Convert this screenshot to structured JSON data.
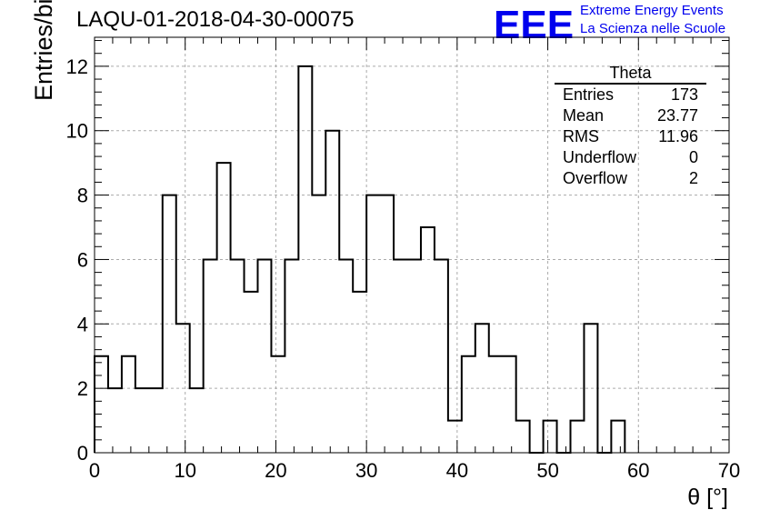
{
  "title": "LAQU-01-2018-04-30-00075",
  "logo": {
    "mark": "EEE",
    "line1": "Extreme Energy Events",
    "line2": "La Scienza nelle Scuole",
    "color": "#0000ee"
  },
  "stats": {
    "title": "Theta",
    "rows": [
      {
        "label": "Entries",
        "value": "173"
      },
      {
        "label": "Mean",
        "value": "23.77"
      },
      {
        "label": "RMS",
        "value": "11.96"
      },
      {
        "label": "Underflow",
        "value": "0"
      },
      {
        "label": "Overflow",
        "value": "2"
      }
    ]
  },
  "chart_data": {
    "type": "histogram",
    "title": "LAQU-01-2018-04-30-00075",
    "xlabel": "θ [°]",
    "ylabel": "Entries/bin",
    "xlim": [
      0,
      70
    ],
    "ylim": [
      0,
      12.9
    ],
    "xticks": [
      0,
      10,
      20,
      30,
      40,
      50,
      60,
      70
    ],
    "yticks": [
      0,
      2,
      4,
      6,
      8,
      10,
      12
    ],
    "grid": true,
    "bin_width": 1.5,
    "bins": [
      {
        "x0": 0,
        "x1": 1.5,
        "count": 3
      },
      {
        "x0": 1.5,
        "x1": 3,
        "count": 2
      },
      {
        "x0": 3,
        "x1": 4.5,
        "count": 3
      },
      {
        "x0": 4.5,
        "x1": 6,
        "count": 2
      },
      {
        "x0": 6,
        "x1": 7.5,
        "count": 2
      },
      {
        "x0": 7.5,
        "x1": 9,
        "count": 8
      },
      {
        "x0": 9,
        "x1": 10.5,
        "count": 4
      },
      {
        "x0": 10.5,
        "x1": 12,
        "count": 2
      },
      {
        "x0": 12,
        "x1": 13.5,
        "count": 6
      },
      {
        "x0": 13.5,
        "x1": 15,
        "count": 9
      },
      {
        "x0": 15,
        "x1": 16.5,
        "count": 6
      },
      {
        "x0": 16.5,
        "x1": 18,
        "count": 5
      },
      {
        "x0": 18,
        "x1": 19.5,
        "count": 6
      },
      {
        "x0": 19.5,
        "x1": 21,
        "count": 3
      },
      {
        "x0": 21,
        "x1": 22.5,
        "count": 6
      },
      {
        "x0": 22.5,
        "x1": 24,
        "count": 12
      },
      {
        "x0": 24,
        "x1": 25.5,
        "count": 8
      },
      {
        "x0": 25.5,
        "x1": 27,
        "count": 10
      },
      {
        "x0": 27,
        "x1": 28.5,
        "count": 6
      },
      {
        "x0": 28.5,
        "x1": 30,
        "count": 5
      },
      {
        "x0": 30,
        "x1": 31.5,
        "count": 8
      },
      {
        "x0": 31.5,
        "x1": 33,
        "count": 8
      },
      {
        "x0": 33,
        "x1": 34.5,
        "count": 6
      },
      {
        "x0": 34.5,
        "x1": 36,
        "count": 6
      },
      {
        "x0": 36,
        "x1": 37.5,
        "count": 7
      },
      {
        "x0": 37.5,
        "x1": 39,
        "count": 6
      },
      {
        "x0": 39,
        "x1": 40.5,
        "count": 1
      },
      {
        "x0": 40.5,
        "x1": 42,
        "count": 3
      },
      {
        "x0": 42,
        "x1": 43.5,
        "count": 4
      },
      {
        "x0": 43.5,
        "x1": 45,
        "count": 3
      },
      {
        "x0": 45,
        "x1": 46.5,
        "count": 3
      },
      {
        "x0": 46.5,
        "x1": 48,
        "count": 1
      },
      {
        "x0": 48,
        "x1": 49.5,
        "count": 0
      },
      {
        "x0": 49.5,
        "x1": 51,
        "count": 1
      },
      {
        "x0": 51,
        "x1": 52.5,
        "count": 0
      },
      {
        "x0": 52.5,
        "x1": 54,
        "count": 1
      },
      {
        "x0": 54,
        "x1": 55.5,
        "count": 4
      },
      {
        "x0": 55.5,
        "x1": 57,
        "count": 0
      },
      {
        "x0": 57,
        "x1": 58.5,
        "count": 1
      }
    ]
  }
}
